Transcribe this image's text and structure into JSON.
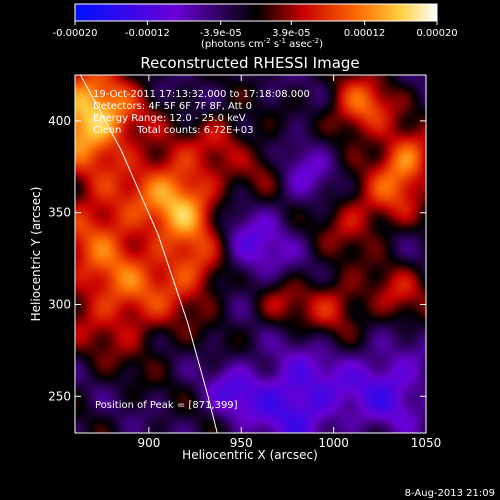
{
  "colorbar": {
    "ticks": [
      "-0.00020",
      "-0.00012",
      "-3.9e-05",
      "3.9e-05",
      "0.00012",
      "0.00020"
    ],
    "tick_values": [
      -0.0002,
      -0.00012,
      -3.9e-05,
      3.9e-05,
      0.00012,
      0.0002
    ],
    "range": [
      -0.0002,
      0.0002
    ],
    "unit_main": "(photons cm",
    "unit_sup1": "-2",
    "unit_mid": " s",
    "unit_sup2": "-1",
    "unit_end": " asec",
    "unit_sup3": "-2",
    "unit_close": ")"
  },
  "chart_data": {
    "type": "heatmap",
    "title": "Reconstructed RHESSI Image",
    "xlabel": "Heliocentric X (arcsec)",
    "ylabel": "Heliocentric Y (arcsec)",
    "xlim": [
      860,
      1050
    ],
    "ylim": [
      230,
      425
    ],
    "xticks": [
      900,
      950,
      1000,
      1050
    ],
    "yticks": [
      250,
      300,
      350,
      400
    ],
    "annotations": [
      "19-Oct-2011 17:13:32.000 to 17:18:08.000",
      "Detectors: 4F 5F 6F 7F 8F, Att 0",
      "Energy Range: 12.0 - 25.0 keV",
      "Clean     Total counts: 6.72E+03"
    ],
    "peak_label": "Position of Peak = [871,399]",
    "peak": [
      871,
      399
    ],
    "limb_line": [
      [
        863,
        425
      ],
      [
        885,
        384
      ],
      [
        905,
        338
      ],
      [
        921,
        290
      ],
      [
        932,
        250
      ],
      [
        937,
        230
      ]
    ],
    "sources": [
      {
        "x": 868,
        "y": 402,
        "amp": 1.0,
        "sigma": 18
      },
      {
        "x": 872,
        "y": 345,
        "amp": 0.45,
        "sigma": 18
      },
      {
        "x": 912,
        "y": 366,
        "amp": 0.55,
        "sigma": 16
      },
      {
        "x": 922,
        "y": 350,
        "amp": 0.45,
        "sigma": 13
      },
      {
        "x": 885,
        "y": 305,
        "amp": 0.55,
        "sigma": 22
      },
      {
        "x": 925,
        "y": 320,
        "amp": 0.5,
        "sigma": 14
      },
      {
        "x": 940,
        "y": 392,
        "amp": 0.35,
        "sigma": 10
      },
      {
        "x": 963,
        "y": 375,
        "amp": 0.3,
        "sigma": 10
      },
      {
        "x": 1015,
        "y": 407,
        "amp": 0.65,
        "sigma": 12
      },
      {
        "x": 1040,
        "y": 380,
        "amp": 0.65,
        "sigma": 11
      },
      {
        "x": 1032,
        "y": 360,
        "amp": 0.4,
        "sigma": 12
      },
      {
        "x": 1010,
        "y": 345,
        "amp": 0.35,
        "sigma": 12
      },
      {
        "x": 1000,
        "y": 300,
        "amp": 0.4,
        "sigma": 12
      },
      {
        "x": 970,
        "y": 300,
        "amp": 0.3,
        "sigma": 10
      },
      {
        "x": 1035,
        "y": 305,
        "amp": 0.35,
        "sigma": 12
      },
      {
        "x": 955,
        "y": 330,
        "amp": -0.4,
        "sigma": 15
      },
      {
        "x": 985,
        "y": 375,
        "amp": -0.3,
        "sigma": 12
      },
      {
        "x": 980,
        "y": 248,
        "amp": -0.55,
        "sigma": 18
      },
      {
        "x": 1030,
        "y": 255,
        "amp": -0.45,
        "sigma": 16
      },
      {
        "x": 945,
        "y": 252,
        "amp": -0.35,
        "sigma": 10
      }
    ]
  },
  "footer": {
    "timestamp": "8-Aug-2013 21:09"
  }
}
